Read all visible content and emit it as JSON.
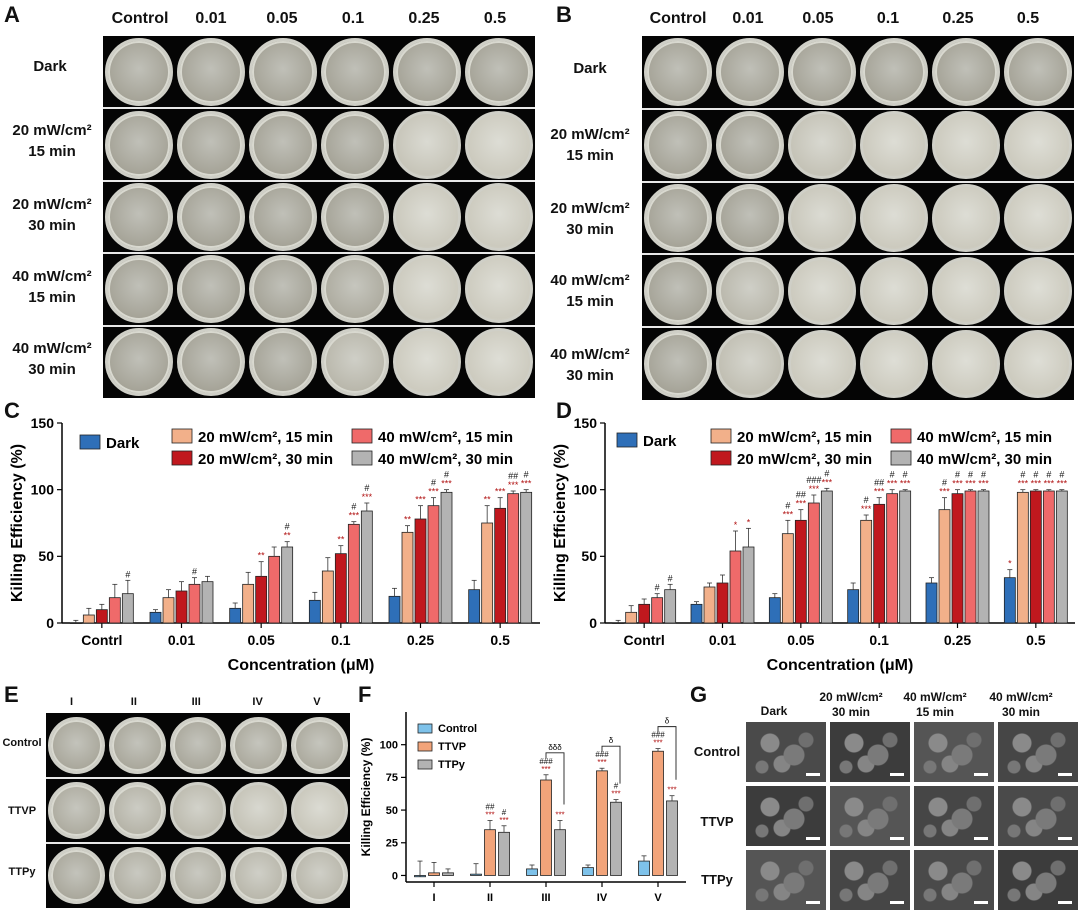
{
  "panels": {
    "A": "A",
    "B": "B",
    "C": "C",
    "D": "D",
    "E": "E",
    "F": "F",
    "G": "G"
  },
  "plates": {
    "columns": [
      "Control",
      "0.01",
      "0.05",
      "0.1",
      "0.25",
      "0.5"
    ],
    "rows": [
      [
        "Dark"
      ],
      [
        "20 mW/cm²",
        "15 min"
      ],
      [
        "20 mW/cm²",
        "30 min"
      ],
      [
        "40 mW/cm²",
        "15 min"
      ],
      [
        "40 mW/cm²",
        "30 min"
      ]
    ]
  },
  "plates_e": {
    "columns": [
      "I",
      "II",
      "III",
      "IV",
      "V"
    ],
    "rows": [
      "Control",
      "TTVP",
      "TTPy"
    ]
  },
  "sem": {
    "columns": [
      [
        "Dark"
      ],
      [
        "20 mW/cm²",
        "30 min"
      ],
      [
        "40 mW/cm²",
        "15 min"
      ],
      [
        "40 mW/cm²",
        "30 min"
      ]
    ],
    "rows": [
      "Control",
      "TTVP",
      "TTPy"
    ]
  },
  "chart_data": [
    {
      "id": "C",
      "type": "bar",
      "ylabel": "Killing Efficiency (%)",
      "xlabel": "Concentration (μM)",
      "ylim": [
        0,
        150
      ],
      "yticks": [
        0,
        50,
        100,
        150
      ],
      "categories": [
        "Contrl",
        "0.01",
        "0.05",
        "0.1",
        "0.25",
        "0.5"
      ],
      "series": [
        {
          "name": "Dark",
          "color": "#2e6fb8",
          "values": [
            0,
            8,
            11,
            17,
            20,
            25
          ],
          "err": [
            2,
            2,
            4,
            6,
            6,
            7
          ]
        },
        {
          "name": "20 mW/cm², 15 min",
          "color": "#f2b08a",
          "values": [
            6,
            19,
            29,
            39,
            68,
            75
          ],
          "err": [
            5,
            6,
            9,
            10,
            5,
            13
          ]
        },
        {
          "name": "20 mW/cm², 30 min",
          "color": "#c0181e",
          "values": [
            10,
            24,
            35,
            52,
            78,
            86
          ],
          "err": [
            4,
            7,
            11,
            6,
            10,
            8
          ]
        },
        {
          "name": "40 mW/cm², 15 min",
          "color": "#ef6a6a",
          "values": [
            19,
            29,
            50,
            74,
            88,
            97
          ],
          "err": [
            10,
            5,
            7,
            2,
            6,
            2
          ]
        },
        {
          "name": "40 mW/cm², 30 min",
          "color": "#b3b3b3",
          "values": [
            22,
            31,
            57,
            84,
            98,
            98
          ],
          "err": [
            10,
            4,
            4,
            6,
            2,
            2
          ]
        }
      ],
      "annotations": [
        {
          "cat": 1,
          "series": 3,
          "text": [
            "#"
          ]
        },
        {
          "cat": 2,
          "series": 2,
          "text": [
            "**"
          ]
        },
        {
          "cat": 2,
          "series": 4,
          "text": [
            "#",
            "**"
          ]
        },
        {
          "cat": 3,
          "series": 2,
          "text": [
            "**"
          ]
        },
        {
          "cat": 3,
          "series": 3,
          "text": [
            "#",
            "***"
          ]
        },
        {
          "cat": 3,
          "series": 4,
          "text": [
            "#",
            "***"
          ]
        },
        {
          "cat": 4,
          "series": 1,
          "text": [
            "**"
          ]
        },
        {
          "cat": 4,
          "series": 2,
          "text": [
            "***"
          ]
        },
        {
          "cat": 4,
          "series": 3,
          "text": [
            "#",
            "***"
          ]
        },
        {
          "cat": 4,
          "series": 4,
          "text": [
            "#",
            "***"
          ]
        },
        {
          "cat": 5,
          "series": 1,
          "text": [
            "**"
          ]
        },
        {
          "cat": 5,
          "series": 2,
          "text": [
            "***"
          ]
        },
        {
          "cat": 5,
          "series": 3,
          "text": [
            "##",
            "***"
          ]
        },
        {
          "cat": 5,
          "series": 4,
          "text": [
            "#",
            "***"
          ]
        },
        {
          "cat": 0,
          "series": 4,
          "text": [
            "#"
          ]
        }
      ]
    },
    {
      "id": "D",
      "type": "bar",
      "ylabel": "Killing Efficiency (%)",
      "xlabel": "Concentration (μM)",
      "ylim": [
        0,
        150
      ],
      "yticks": [
        0,
        50,
        100,
        150
      ],
      "categories": [
        "Contrl",
        "0.01",
        "0.05",
        "0.1",
        "0.25",
        "0.5"
      ],
      "series": [
        {
          "name": "Dark",
          "color": "#2e6fb8",
          "values": [
            0,
            14,
            19,
            25,
            30,
            34
          ],
          "err": [
            2,
            2,
            3,
            5,
            4,
            6
          ]
        },
        {
          "name": "20 mW/cm², 15 min",
          "color": "#f2b08a",
          "values": [
            8,
            27,
            67,
            77,
            85,
            98
          ],
          "err": [
            5,
            3,
            10,
            4,
            9,
            2
          ]
        },
        {
          "name": "20 mW/cm², 30 min",
          "color": "#c0181e",
          "values": [
            14,
            30,
            77,
            89,
            97,
            99
          ],
          "err": [
            4,
            6,
            8,
            5,
            3,
            1
          ]
        },
        {
          "name": "40 mW/cm², 15 min",
          "color": "#ef6a6a",
          "values": [
            19,
            54,
            90,
            97,
            99,
            99
          ],
          "err": [
            3,
            15,
            6,
            3,
            1,
            1
          ]
        },
        {
          "name": "40 mW/cm², 30 min",
          "color": "#b3b3b3",
          "values": [
            25,
            57,
            99,
            99,
            99,
            99
          ],
          "err": [
            4,
            14,
            2,
            1,
            1,
            1
          ]
        }
      ],
      "annotations": [
        {
          "cat": 0,
          "series": 3,
          "text": [
            "#"
          ]
        },
        {
          "cat": 0,
          "series": 4,
          "text": [
            "#"
          ]
        },
        {
          "cat": 1,
          "series": 3,
          "text": [
            "*"
          ]
        },
        {
          "cat": 1,
          "series": 4,
          "text": [
            "*"
          ]
        },
        {
          "cat": 2,
          "series": 1,
          "text": [
            "#",
            "***"
          ]
        },
        {
          "cat": 2,
          "series": 2,
          "text": [
            "##",
            "***"
          ]
        },
        {
          "cat": 2,
          "series": 3,
          "text": [
            "###",
            "***"
          ]
        },
        {
          "cat": 2,
          "series": 4,
          "text": [
            "#",
            "***"
          ]
        },
        {
          "cat": 3,
          "series": 1,
          "text": [
            "#",
            "***"
          ]
        },
        {
          "cat": 3,
          "series": 2,
          "text": [
            "##",
            "***"
          ]
        },
        {
          "cat": 3,
          "series": 3,
          "text": [
            "#",
            "***"
          ]
        },
        {
          "cat": 3,
          "series": 4,
          "text": [
            "#",
            "***"
          ]
        },
        {
          "cat": 4,
          "series": 1,
          "text": [
            "#",
            "***"
          ]
        },
        {
          "cat": 4,
          "series": 2,
          "text": [
            "#",
            "***"
          ]
        },
        {
          "cat": 4,
          "series": 3,
          "text": [
            "#",
            "***"
          ]
        },
        {
          "cat": 4,
          "series": 4,
          "text": [
            "#",
            "***"
          ]
        },
        {
          "cat": 5,
          "series": 0,
          "text": [
            "*"
          ]
        },
        {
          "cat": 5,
          "series": 1,
          "text": [
            "#",
            "***"
          ]
        },
        {
          "cat": 5,
          "series": 2,
          "text": [
            "#",
            "***"
          ]
        },
        {
          "cat": 5,
          "series": 3,
          "text": [
            "#",
            "***"
          ]
        },
        {
          "cat": 5,
          "series": 4,
          "text": [
            "#",
            "***"
          ]
        }
      ]
    },
    {
      "id": "F",
      "type": "bar",
      "ylabel": "Killing Efficiency (%)",
      "xlabel": "",
      "ylim": [
        -5,
        125
      ],
      "yticks": [
        0,
        25,
        50,
        75,
        100
      ],
      "categories": [
        "I",
        "II",
        "III",
        "IV",
        "V"
      ],
      "series": [
        {
          "name": "Control",
          "color": "#7ec2ea",
          "values": [
            -1,
            1,
            5,
            6,
            11
          ],
          "err": [
            12,
            8,
            3,
            2,
            4
          ]
        },
        {
          "name": "TTVP",
          "color": "#f2a47a",
          "values": [
            2,
            35,
            73,
            80,
            95
          ],
          "err": [
            8,
            7,
            4,
            2,
            2
          ]
        },
        {
          "name": "TTPy",
          "color": "#b3b3b3",
          "values": [
            2,
            33,
            35,
            56,
            57
          ],
          "err": [
            3,
            5,
            7,
            2,
            4
          ]
        }
      ],
      "annotations": [
        {
          "cat": 1,
          "series": 1,
          "text": [
            "##",
            "***"
          ]
        },
        {
          "cat": 1,
          "series": 2,
          "text": [
            "#",
            "***"
          ]
        },
        {
          "cat": 2,
          "series": 1,
          "text": [
            "###",
            "***"
          ]
        },
        {
          "cat": 2,
          "series": 2,
          "text": [
            "***"
          ]
        },
        {
          "cat": 3,
          "series": 1,
          "text": [
            "###",
            "***"
          ]
        },
        {
          "cat": 3,
          "series": 2,
          "text": [
            "#",
            "***"
          ]
        },
        {
          "cat": 4,
          "series": 1,
          "text": [
            "###",
            "***"
          ]
        },
        {
          "cat": 4,
          "series": 2,
          "text": [
            "***"
          ]
        }
      ],
      "brackets": [
        {
          "cat": 2,
          "text": "δδδ"
        },
        {
          "cat": 3,
          "text": "δ"
        },
        {
          "cat": 4,
          "text": "δ"
        }
      ]
    }
  ]
}
